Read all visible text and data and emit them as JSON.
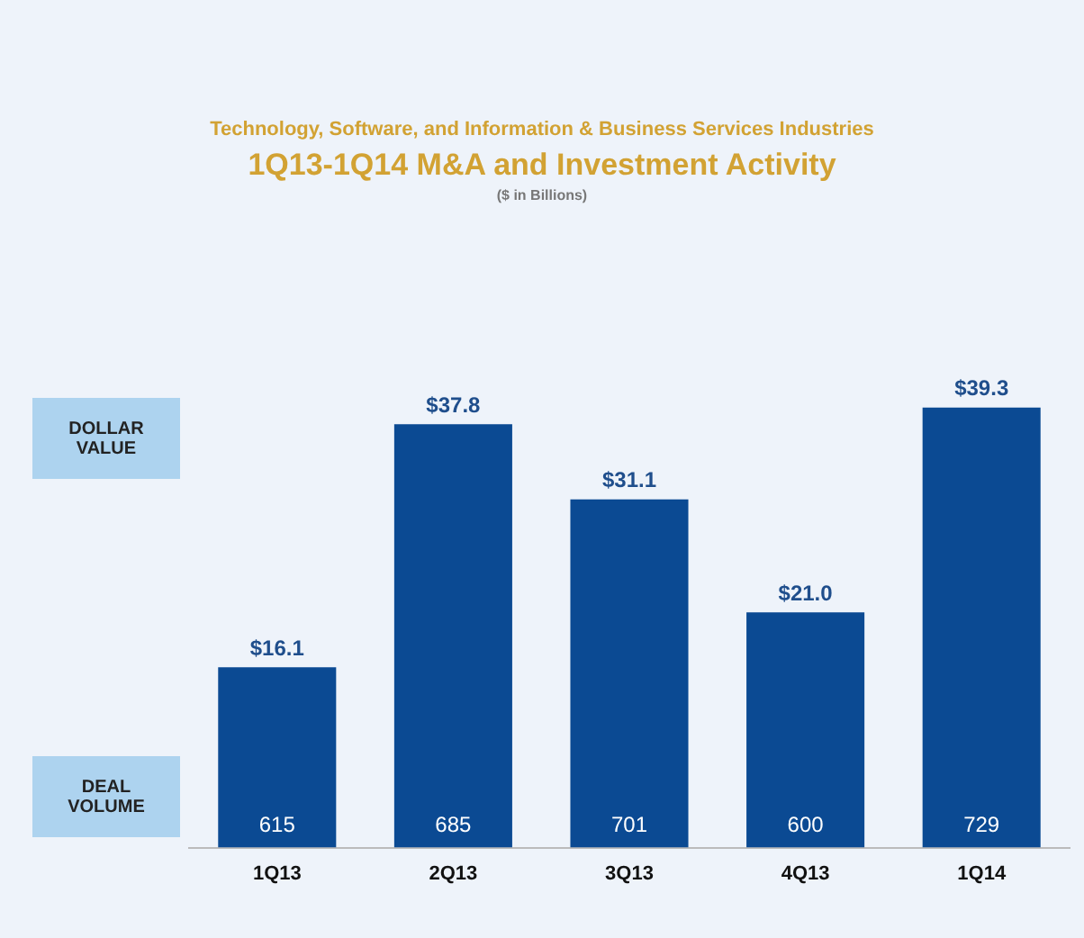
{
  "chart_data": {
    "type": "bar",
    "subtitle": "Technology, Software, and Information & Business Services Industries",
    "title": "1Q13-1Q14 M&A and Investment Activity",
    "categories": [
      "1Q13",
      "2Q13",
      "3Q13",
      "4Q13",
      "1Q14"
    ],
    "values": [
      16.1,
      37.8,
      31.1,
      21.0,
      39.3
    ],
    "color": "#0b4a93",
    "value_labels": [
      "$16.1",
      "$37.8",
      "$31.1",
      "$21.0",
      "$39.3"
    ],
    "annotations": [
      "($ in Billions)",
      "DOLLAR VALUE",
      "DEAL VOLUME",
      "615",
      "685",
      "701",
      "600",
      "729"
    ],
    "grid": false,
    "legend": false,
    "tick_labels": "x"
  }
}
